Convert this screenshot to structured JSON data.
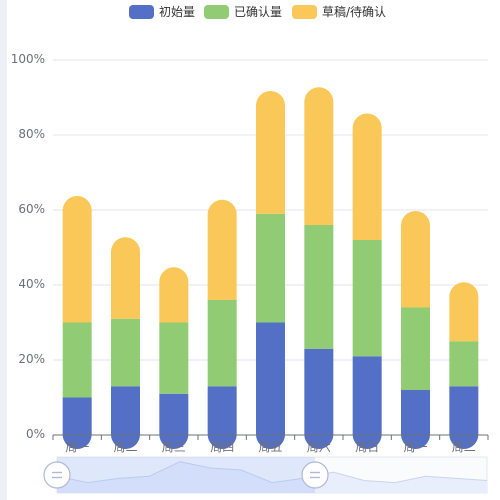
{
  "chart_data": {
    "type": "bar",
    "stacked": true,
    "categories": [
      "周一",
      "周二",
      "周三",
      "周四",
      "周五",
      "周六",
      "周日",
      "周一",
      "周二"
    ],
    "series": [
      {
        "name": "初始量",
        "color": "#5470c6",
        "values": [
          10,
          13,
          11,
          13,
          30,
          23,
          21,
          12,
          13
        ]
      },
      {
        "name": "已确认量",
        "color": "#91cc75",
        "values": [
          20,
          18,
          19,
          23,
          29,
          33,
          31,
          22,
          12
        ]
      },
      {
        "name": "草稿/待确认",
        "color": "#fac858",
        "values": [
          30,
          18,
          11,
          23,
          29,
          33,
          30,
          22,
          12
        ]
      }
    ],
    "yticks": [
      "0%",
      "20%",
      "40%",
      "60%",
      "80%",
      "100%"
    ],
    "ylim": [
      0,
      100
    ],
    "legend_position": "top-center",
    "grid": true,
    "bar_style": "rounded-capsule",
    "datazoom": {
      "type": "slider",
      "position": "bottom",
      "range_start_percent": 0,
      "range_end_percent": 60,
      "background_trend": [
        16,
        10,
        14,
        16,
        30,
        24,
        22,
        10,
        14,
        20,
        12,
        10,
        16,
        14,
        12
      ]
    }
  }
}
